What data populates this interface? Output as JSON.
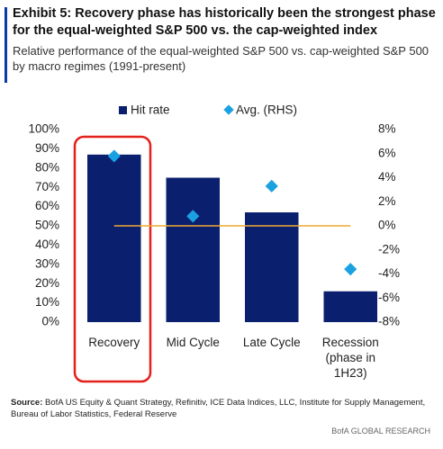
{
  "chart_data": {
    "type": "bar",
    "title": "Exhibit 5: Recovery phase has historically been the strongest phase for the equal-weighted S&P 500 vs. the cap-weighted index",
    "subtitle": "Relative performance of the equal-weighted S&P 500 vs. cap-weighted S&P 500 by macro regimes (1991-present)",
    "categories": [
      "Recovery",
      "Mid Cycle",
      "Late Cycle",
      "Recession\n(phase in\n1H23)"
    ],
    "series": [
      {
        "name": "Hit rate",
        "color": "#0a1f6e",
        "values": [
          87,
          75,
          57,
          16
        ]
      },
      {
        "name": "Avg. (RHS)",
        "color": "#1ba1e2",
        "axis": "y2",
        "values": [
          5.8,
          0.8,
          3.3,
          -3.6
        ]
      }
    ],
    "ylim": [
      0,
      100
    ],
    "yticks": [
      {
        "value": 0,
        "label": "0%"
      },
      {
        "value": 10,
        "label": "10%"
      },
      {
        "value": 20,
        "label": "20%"
      },
      {
        "value": 30,
        "label": "30%"
      },
      {
        "value": 40,
        "label": "40%"
      },
      {
        "value": 50,
        "label": "50%"
      },
      {
        "value": 60,
        "label": "60%"
      },
      {
        "value": 70,
        "label": "70%"
      },
      {
        "value": 80,
        "label": "80%"
      },
      {
        "value": 90,
        "label": "90%"
      },
      {
        "value": 100,
        "label": "100%"
      }
    ],
    "y2lim": [
      -8,
      8
    ],
    "y2ticks": [
      {
        "value": -8,
        "label": "-8%"
      },
      {
        "value": -6,
        "label": "-6%"
      },
      {
        "value": -4,
        "label": "-4%"
      },
      {
        "value": -2,
        "label": "-2%"
      },
      {
        "value": 0,
        "label": "0%"
      },
      {
        "value": 2,
        "label": "2%"
      },
      {
        "value": 4,
        "label": "4%"
      },
      {
        "value": 6,
        "label": "6%"
      },
      {
        "value": 8,
        "label": "8%"
      }
    ],
    "zero_line_color": "#f0a830",
    "source_label": "Source:",
    "source_text": "BofA US Equity & Quant Strategy, Refinitiv, ICE Data Indices, LLC, Institute for Supply Management, Bureau of Labor Statistics, Federal Reserve",
    "footer": "BofA GLOBAL RESEARCH"
  }
}
